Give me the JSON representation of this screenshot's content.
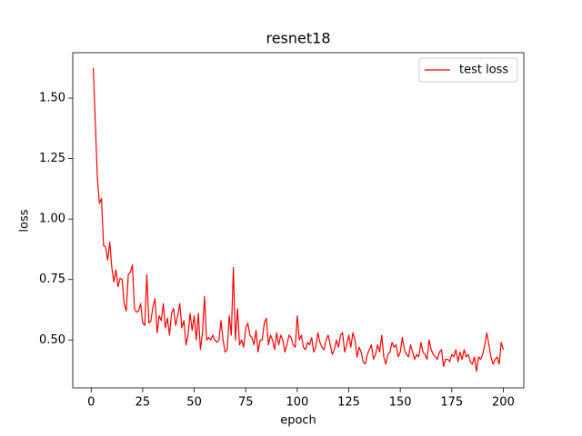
{
  "chart_data": {
    "type": "line",
    "title": "resnet18",
    "x_label": "epoch",
    "y_label": "loss",
    "x": [
      1,
      2,
      3,
      4,
      5,
      6,
      7,
      8,
      9,
      10,
      11,
      12,
      13,
      14,
      15,
      16,
      17,
      18,
      19,
      20,
      21,
      22,
      23,
      24,
      25,
      26,
      27,
      28,
      29,
      30,
      31,
      32,
      33,
      34,
      35,
      36,
      37,
      38,
      39,
      40,
      41,
      42,
      43,
      44,
      45,
      46,
      47,
      48,
      49,
      50,
      51,
      52,
      53,
      54,
      55,
      56,
      57,
      58,
      59,
      60,
      61,
      62,
      63,
      64,
      65,
      66,
      67,
      68,
      69,
      70,
      71,
      72,
      73,
      74,
      75,
      76,
      77,
      78,
      79,
      80,
      81,
      82,
      83,
      84,
      85,
      86,
      87,
      88,
      89,
      90,
      91,
      92,
      93,
      94,
      95,
      96,
      97,
      98,
      99,
      100,
      101,
      102,
      103,
      104,
      105,
      106,
      107,
      108,
      109,
      110,
      111,
      112,
      113,
      114,
      115,
      116,
      117,
      118,
      119,
      120,
      121,
      122,
      123,
      124,
      125,
      126,
      127,
      128,
      129,
      130,
      131,
      132,
      133,
      134,
      135,
      136,
      137,
      138,
      139,
      140,
      141,
      142,
      143,
      144,
      145,
      146,
      147,
      148,
      149,
      150,
      151,
      152,
      153,
      154,
      155,
      156,
      157,
      158,
      159,
      160,
      161,
      162,
      163,
      164,
      165,
      166,
      167,
      168,
      169,
      170,
      171,
      172,
      173,
      174,
      175,
      176,
      177,
      178,
      179,
      180,
      181,
      182,
      183,
      184,
      185,
      186,
      187,
      188,
      189,
      190,
      191,
      192,
      193,
      194,
      195,
      196,
      197,
      198,
      199,
      200
    ],
    "series": [
      {
        "name": "test loss",
        "color": "#ff0000",
        "values": [
          1.625,
          1.4,
          1.17,
          1.065,
          1.085,
          0.89,
          0.885,
          0.83,
          0.905,
          0.8,
          0.74,
          0.79,
          0.72,
          0.755,
          0.75,
          0.65,
          0.62,
          0.77,
          0.78,
          0.81,
          0.63,
          0.615,
          0.62,
          0.65,
          0.57,
          0.56,
          0.77,
          0.57,
          0.58,
          0.64,
          0.67,
          0.53,
          0.6,
          0.58,
          0.65,
          0.55,
          0.59,
          0.52,
          0.61,
          0.63,
          0.56,
          0.6,
          0.65,
          0.55,
          0.58,
          0.48,
          0.52,
          0.61,
          0.54,
          0.6,
          0.5,
          0.61,
          0.46,
          0.53,
          0.68,
          0.5,
          0.51,
          0.5,
          0.52,
          0.5,
          0.49,
          0.5,
          0.58,
          0.5,
          0.45,
          0.46,
          0.6,
          0.52,
          0.8,
          0.5,
          0.63,
          0.48,
          0.5,
          0.47,
          0.55,
          0.57,
          0.52,
          0.51,
          0.48,
          0.54,
          0.45,
          0.5,
          0.5,
          0.57,
          0.59,
          0.48,
          0.52,
          0.5,
          0.46,
          0.53,
          0.48,
          0.52,
          0.5,
          0.45,
          0.48,
          0.52,
          0.51,
          0.48,
          0.47,
          0.6,
          0.5,
          0.52,
          0.47,
          0.46,
          0.49,
          0.48,
          0.51,
          0.45,
          0.47,
          0.53,
          0.49,
          0.47,
          0.46,
          0.5,
          0.52,
          0.48,
          0.44,
          0.46,
          0.5,
          0.47,
          0.52,
          0.53,
          0.45,
          0.48,
          0.52,
          0.47,
          0.53,
          0.5,
          0.43,
          0.47,
          0.45,
          0.41,
          0.4,
          0.44,
          0.46,
          0.48,
          0.42,
          0.44,
          0.48,
          0.45,
          0.52,
          0.43,
          0.4,
          0.44,
          0.45,
          0.49,
          0.47,
          0.48,
          0.43,
          0.45,
          0.51,
          0.46,
          0.44,
          0.43,
          0.48,
          0.45,
          0.42,
          0.44,
          0.43,
          0.49,
          0.45,
          0.44,
          0.42,
          0.5,
          0.46,
          0.44,
          0.43,
          0.42,
          0.45,
          0.46,
          0.39,
          0.42,
          0.42,
          0.41,
          0.44,
          0.43,
          0.46,
          0.41,
          0.45,
          0.42,
          0.46,
          0.43,
          0.44,
          0.41,
          0.4,
          0.43,
          0.37,
          0.43,
          0.42,
          0.44,
          0.48,
          0.53,
          0.48,
          0.43,
          0.4,
          0.42,
          0.43,
          0.4,
          0.49,
          0.46
        ]
      }
    ],
    "xlim": [
      -8.95,
      209.95
    ],
    "ylim": [
      0.302,
      1.688
    ],
    "xticks": [
      0,
      25,
      50,
      75,
      100,
      125,
      150,
      175,
      200
    ],
    "yticks": [
      {
        "value": 0.5,
        "label": "0.50"
      },
      0.75,
      {
        "value": 1.0,
        "label": "1.00"
      },
      1.25,
      {
        "value": 1.5,
        "label": "1.50"
      }
    ],
    "legend": "upper right"
  }
}
